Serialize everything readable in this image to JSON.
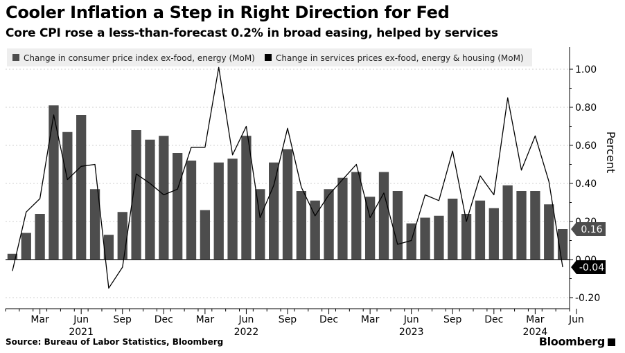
{
  "header": {
    "title": "Cooler Inflation a Step in Right Direction for Fed",
    "subtitle": "Core CPI rose a less-than-forecast 0.2% in broad easing, helped by services"
  },
  "footer": {
    "source": "Source: Bureau of Labor Statistics, Bloomberg",
    "brand": "Bloomberg"
  },
  "colors": {
    "bar": "#4d4d4d",
    "line": "#000000",
    "legend_bg": "#eeeeee",
    "grid": "#cfcfcf",
    "callout_bar": "#4d4d4d",
    "callout_line": "#000000"
  },
  "chart_data": {
    "type": "bar",
    "x_start": "Jan 2021",
    "x_end": "May 2024",
    "x_ticks": [
      {
        "month": "Mar",
        "year": ""
      },
      {
        "month": "Jun",
        "year": "2021"
      },
      {
        "month": "Sep",
        "year": ""
      },
      {
        "month": "Dec",
        "year": ""
      },
      {
        "month": "Mar",
        "year": ""
      },
      {
        "month": "Jun",
        "year": "2022"
      },
      {
        "month": "Sep",
        "year": ""
      },
      {
        "month": "Dec",
        "year": ""
      },
      {
        "month": "Mar",
        "year": ""
      },
      {
        "month": "Jun",
        "year": "2023"
      },
      {
        "month": "Sep",
        "year": ""
      },
      {
        "month": "Dec",
        "year": ""
      },
      {
        "month": "Mar",
        "year": "2024"
      },
      {
        "month": "Jun",
        "year": ""
      }
    ],
    "y_ticks": [
      "1.00",
      "0.80",
      "0.60",
      "0.40",
      "0.20",
      "0.00",
      "-0.20"
    ],
    "ylabel": "Percent",
    "ylim": [
      -0.25,
      1.12
    ],
    "grid": true,
    "legend_position": "top-left",
    "series": [
      {
        "name": "Change in consumer price index ex-food, energy (MoM)",
        "kind": "bar",
        "values": [
          0.03,
          0.14,
          0.24,
          0.81,
          0.67,
          0.76,
          0.37,
          0.13,
          0.25,
          0.68,
          0.63,
          0.65,
          0.56,
          0.52,
          0.26,
          0.51,
          0.53,
          0.65,
          0.37,
          0.51,
          0.58,
          0.36,
          0.31,
          0.37,
          0.43,
          0.46,
          0.33,
          0.46,
          0.36,
          0.19,
          0.22,
          0.23,
          0.32,
          0.24,
          0.31,
          0.27,
          0.39,
          0.36,
          0.36,
          0.29,
          0.16
        ]
      },
      {
        "name": "Change in services prices ex-food, energy & housing (MoM)",
        "kind": "line",
        "values": [
          -0.06,
          0.25,
          0.32,
          0.76,
          0.42,
          0.49,
          0.5,
          -0.15,
          -0.04,
          0.45,
          0.4,
          0.34,
          0.37,
          0.59,
          0.59,
          1.01,
          0.55,
          0.7,
          0.22,
          0.39,
          0.69,
          0.38,
          0.23,
          0.34,
          0.42,
          0.5,
          0.22,
          0.35,
          0.08,
          0.1,
          0.34,
          0.31,
          0.57,
          0.2,
          0.44,
          0.34,
          0.85,
          0.47,
          0.65,
          0.41,
          -0.04
        ]
      }
    ],
    "latest_labels": {
      "bar": "0.16",
      "line": "-0.04"
    }
  }
}
